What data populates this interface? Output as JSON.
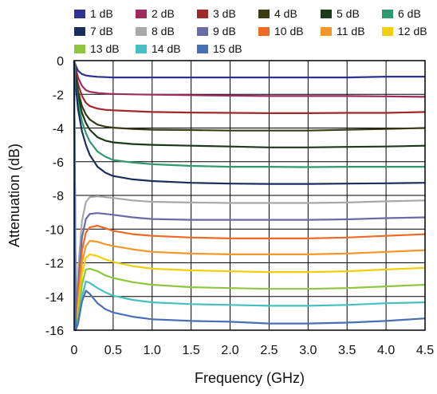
{
  "chart_data": {
    "type": "line",
    "xlabel": "Frequency (GHz)",
    "ylabel": "Attenuation (dB)",
    "xlim": [
      0,
      4.5
    ],
    "ylim": [
      -16,
      0
    ],
    "xticks": [
      "0",
      "0.5",
      "1.0",
      "1.5",
      "2.0",
      "2.5",
      "3.0",
      "3.5",
      "4.0",
      "4.5"
    ],
    "yticks": [
      "0",
      "-2",
      "-4",
      "-6",
      "-8",
      "-10",
      "-12",
      "-14",
      "-16"
    ],
    "grid": true,
    "legend_position": "top",
    "x": [
      0.02,
      0.05,
      0.1,
      0.15,
      0.2,
      0.3,
      0.4,
      0.5,
      0.75,
      1.0,
      1.5,
      2.0,
      2.5,
      3.0,
      3.5,
      4.0,
      4.5
    ],
    "series": [
      {
        "name": "1 dB",
        "color": "#2e3192",
        "values": [
          -0.3,
          -0.6,
          -0.8,
          -0.88,
          -0.92,
          -0.96,
          -0.98,
          -1.0,
          -1.0,
          -1.0,
          -1.0,
          -1.0,
          -1.0,
          -1.0,
          -1.0,
          -0.95,
          -0.95
        ]
      },
      {
        "name": "2 dB",
        "color": "#9e2a5e",
        "values": [
          -0.5,
          -1.0,
          -1.5,
          -1.75,
          -1.85,
          -1.92,
          -1.96,
          -1.98,
          -2.0,
          -2.02,
          -2.05,
          -2.08,
          -2.1,
          -2.1,
          -2.1,
          -2.12,
          -2.15
        ]
      },
      {
        "name": "3 dB",
        "color": "#a0282a",
        "values": [
          -0.7,
          -1.4,
          -2.1,
          -2.5,
          -2.7,
          -2.85,
          -2.92,
          -2.95,
          -3.0,
          -3.05,
          -3.08,
          -3.1,
          -3.12,
          -3.12,
          -3.1,
          -3.1,
          -3.05
        ]
      },
      {
        "name": "4 dB",
        "color": "#3a3a14",
        "values": [
          -0.9,
          -1.8,
          -2.7,
          -3.2,
          -3.5,
          -3.8,
          -3.92,
          -3.98,
          -4.05,
          -4.1,
          -4.12,
          -4.15,
          -4.15,
          -4.15,
          -4.1,
          -4.05,
          -4.0
        ]
      },
      {
        "name": "5 dB",
        "color": "#1c3a1a",
        "values": [
          -1.1,
          -2.1,
          -3.1,
          -3.7,
          -4.1,
          -4.55,
          -4.75,
          -4.85,
          -4.95,
          -5.0,
          -5.05,
          -5.1,
          -5.15,
          -5.15,
          -5.12,
          -5.1,
          -5.05
        ]
      },
      {
        "name": "6 dB",
        "color": "#2e9a6e",
        "values": [
          -1.3,
          -2.5,
          -3.6,
          -4.3,
          -4.8,
          -5.4,
          -5.7,
          -5.9,
          -6.05,
          -6.15,
          -6.25,
          -6.3,
          -6.3,
          -6.32,
          -6.3,
          -6.3,
          -6.3
        ]
      },
      {
        "name": "7 dB",
        "color": "#1a2e5e",
        "values": [
          -1.5,
          -2.9,
          -4.2,
          -5.0,
          -5.6,
          -6.3,
          -6.65,
          -6.85,
          -7.05,
          -7.15,
          -7.25,
          -7.3,
          -7.32,
          -7.32,
          -7.3,
          -7.28,
          -7.25
        ]
      },
      {
        "name": "8 dB",
        "color": "#a8a8a8",
        "values": [
          -16.0,
          -12.5,
          -9.5,
          -8.4,
          -8.1,
          -8.05,
          -8.1,
          -8.15,
          -8.3,
          -8.38,
          -8.42,
          -8.45,
          -8.45,
          -8.45,
          -8.42,
          -8.35,
          -8.3
        ]
      },
      {
        "name": "9 dB",
        "color": "#6a6aa6",
        "values": [
          -16.0,
          -13.5,
          -10.5,
          -9.4,
          -9.1,
          -9.05,
          -9.1,
          -9.15,
          -9.3,
          -9.4,
          -9.45,
          -9.45,
          -9.45,
          -9.45,
          -9.42,
          -9.35,
          -9.3
        ]
      },
      {
        "name": "10 dB",
        "color": "#ee6a22",
        "values": [
          -16.0,
          -14.0,
          -11.3,
          -10.2,
          -9.9,
          -9.8,
          -9.95,
          -10.1,
          -10.3,
          -10.4,
          -10.5,
          -10.55,
          -10.55,
          -10.55,
          -10.5,
          -10.4,
          -10.3
        ]
      },
      {
        "name": "11 dB",
        "color": "#f5962a",
        "values": [
          -16.0,
          -14.5,
          -12.0,
          -11.0,
          -10.7,
          -10.75,
          -10.9,
          -11.0,
          -11.2,
          -11.35,
          -11.45,
          -11.5,
          -11.5,
          -11.5,
          -11.45,
          -11.35,
          -11.25
        ]
      },
      {
        "name": "12 dB",
        "color": "#f2cf0a",
        "values": [
          -16.0,
          -15.0,
          -12.7,
          -11.7,
          -11.5,
          -11.6,
          -11.8,
          -11.95,
          -12.2,
          -12.35,
          -12.45,
          -12.5,
          -12.55,
          -12.55,
          -12.5,
          -12.4,
          -12.3
        ]
      },
      {
        "name": "13 dB",
        "color": "#8fc63f",
        "values": [
          -16.0,
          -15.2,
          -13.3,
          -12.4,
          -12.35,
          -12.5,
          -12.75,
          -12.9,
          -13.15,
          -13.3,
          -13.45,
          -13.5,
          -13.55,
          -13.55,
          -13.5,
          -13.4,
          -13.3
        ]
      },
      {
        "name": "14 dB",
        "color": "#46c0c0",
        "values": [
          -16.0,
          -15.4,
          -14.0,
          -13.1,
          -13.2,
          -13.5,
          -13.75,
          -13.95,
          -14.2,
          -14.35,
          -14.45,
          -14.5,
          -14.55,
          -14.55,
          -14.5,
          -14.4,
          -14.35
        ]
      },
      {
        "name": "15 dB",
        "color": "#4a6fb5",
        "values": [
          -16.0,
          -15.6,
          -14.3,
          -13.65,
          -13.85,
          -14.4,
          -14.75,
          -14.95,
          -15.2,
          -15.35,
          -15.45,
          -15.5,
          -15.6,
          -15.6,
          -15.55,
          -15.45,
          -15.3
        ]
      }
    ]
  }
}
